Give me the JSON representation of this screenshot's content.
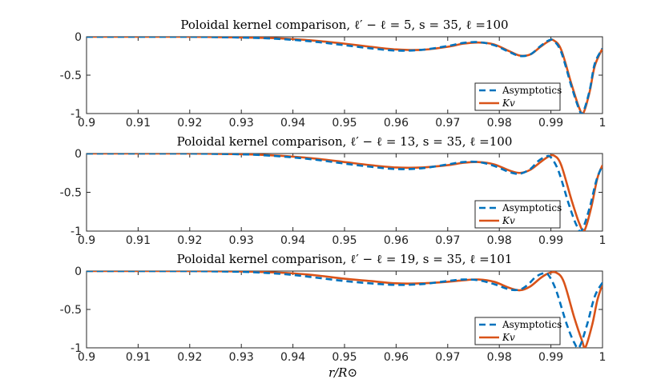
{
  "figure": {
    "xlabel": "r/R⊙"
  },
  "colors": {
    "asymptotics": "#0072BD",
    "kernel": "#D95319",
    "axis": "#262626",
    "background": "#ffffff"
  },
  "chart_data": [
    {
      "type": "line",
      "title": "Poloidal kernel comparison, ℓ′ − ℓ = 5, s = 35, ℓ =100",
      "xlim": [
        0.9,
        1.0
      ],
      "ylim": [
        -1,
        0
      ],
      "xticks": [
        "0.9",
        "0.91",
        "0.92",
        "0.93",
        "0.94",
        "0.95",
        "0.96",
        "0.97",
        "0.98",
        "0.99",
        "1"
      ],
      "yticks": [
        "0",
        "-0.5",
        "-1"
      ],
      "legend": {
        "position": "lower-right",
        "entries": [
          "Asymptotics",
          "Kv"
        ]
      },
      "series": [
        {
          "name": "Asymptotics",
          "style": "dashed",
          "x": [
            0.9,
            0.91,
            0.92,
            0.93,
            0.935,
            0.94,
            0.945,
            0.95,
            0.955,
            0.96,
            0.965,
            0.97,
            0.973,
            0.976,
            0.979,
            0.982,
            0.984,
            0.986,
            0.988,
            0.9895,
            0.9905,
            0.992,
            0.994,
            0.9955,
            0.9962,
            0.9975,
            0.9985,
            1.0
          ],
          "y": [
            0,
            0,
            0,
            -0.01,
            -0.02,
            -0.04,
            -0.07,
            -0.11,
            -0.15,
            -0.18,
            -0.17,
            -0.12,
            -0.08,
            -0.07,
            -0.11,
            -0.2,
            -0.25,
            -0.23,
            -0.12,
            -0.05,
            -0.05,
            -0.2,
            -0.65,
            -0.95,
            -0.99,
            -0.7,
            -0.35,
            -0.15
          ]
        },
        {
          "name": "Kv",
          "style": "solid",
          "x": [
            0.9,
            0.91,
            0.92,
            0.93,
            0.935,
            0.94,
            0.945,
            0.95,
            0.955,
            0.96,
            0.965,
            0.97,
            0.973,
            0.976,
            0.979,
            0.982,
            0.984,
            0.986,
            0.988,
            0.9895,
            0.9905,
            0.992,
            0.994,
            0.9955,
            0.9963,
            0.9975,
            0.9985,
            1.0
          ],
          "y": [
            0,
            0,
            0,
            -0.008,
            -0.015,
            -0.03,
            -0.055,
            -0.09,
            -0.13,
            -0.165,
            -0.17,
            -0.13,
            -0.09,
            -0.075,
            -0.1,
            -0.19,
            -0.245,
            -0.23,
            -0.13,
            -0.06,
            -0.045,
            -0.17,
            -0.62,
            -0.93,
            -0.99,
            -0.72,
            -0.38,
            -0.15
          ]
        }
      ]
    },
    {
      "type": "line",
      "title": "Poloidal kernel comparison, ℓ′ − ℓ = 13, s = 35, ℓ =100",
      "xlim": [
        0.9,
        1.0
      ],
      "ylim": [
        -1,
        0
      ],
      "xticks": [
        "0.9",
        "0.91",
        "0.92",
        "0.93",
        "0.94",
        "0.95",
        "0.96",
        "0.97",
        "0.98",
        "0.99",
        "1"
      ],
      "yticks": [
        "0",
        "-0.5",
        "-1"
      ],
      "legend": {
        "position": "lower-right",
        "entries": [
          "Asymptotics",
          "Kv"
        ]
      },
      "series": [
        {
          "name": "Asymptotics",
          "style": "dashed",
          "x": [
            0.9,
            0.91,
            0.92,
            0.93,
            0.935,
            0.94,
            0.945,
            0.95,
            0.955,
            0.96,
            0.965,
            0.97,
            0.973,
            0.976,
            0.979,
            0.982,
            0.984,
            0.986,
            0.9875,
            0.989,
            0.99,
            0.9915,
            0.9935,
            0.995,
            0.996,
            0.9975,
            0.9988,
            1.0
          ],
          "y": [
            0,
            0,
            0,
            -0.01,
            -0.025,
            -0.05,
            -0.085,
            -0.13,
            -0.17,
            -0.2,
            -0.19,
            -0.14,
            -0.11,
            -0.11,
            -0.16,
            -0.24,
            -0.26,
            -0.2,
            -0.1,
            -0.04,
            -0.05,
            -0.23,
            -0.66,
            -0.93,
            -0.99,
            -0.7,
            -0.35,
            -0.15
          ]
        },
        {
          "name": "Kv",
          "style": "solid",
          "x": [
            0.9,
            0.91,
            0.92,
            0.93,
            0.935,
            0.94,
            0.945,
            0.95,
            0.955,
            0.96,
            0.965,
            0.97,
            0.973,
            0.976,
            0.979,
            0.982,
            0.984,
            0.986,
            0.988,
            0.9895,
            0.9907,
            0.992,
            0.994,
            0.9955,
            0.9965,
            0.9978,
            0.999,
            1.0
          ],
          "y": [
            0,
            0,
            0,
            -0.008,
            -0.02,
            -0.04,
            -0.07,
            -0.11,
            -0.15,
            -0.18,
            -0.18,
            -0.15,
            -0.12,
            -0.11,
            -0.14,
            -0.22,
            -0.25,
            -0.21,
            -0.11,
            -0.04,
            -0.03,
            -0.15,
            -0.6,
            -0.9,
            -0.99,
            -0.7,
            -0.32,
            -0.15
          ]
        }
      ]
    },
    {
      "type": "line",
      "title": "Poloidal kernel comparison, ℓ′ − ℓ = 19, s = 35, ℓ =101",
      "xlim": [
        0.9,
        1.0
      ],
      "ylim": [
        -1,
        0
      ],
      "xticks": [
        "0.9",
        "0.91",
        "0.92",
        "0.93",
        "0.94",
        "0.95",
        "0.96",
        "0.97",
        "0.98",
        "0.99",
        "1"
      ],
      "yticks": [
        "0",
        "-0.5",
        "-1"
      ],
      "legend": {
        "position": "lower-right",
        "entries": [
          "Asymptotics",
          "Kv"
        ]
      },
      "series": [
        {
          "name": "Asymptotics",
          "style": "dashed",
          "x": [
            0.9,
            0.91,
            0.92,
            0.93,
            0.935,
            0.94,
            0.945,
            0.95,
            0.955,
            0.96,
            0.965,
            0.97,
            0.973,
            0.976,
            0.979,
            0.982,
            0.984,
            0.9855,
            0.987,
            0.9885,
            0.9895,
            0.991,
            0.993,
            0.9945,
            0.9955,
            0.997,
            0.9985,
            1.0
          ],
          "y": [
            0,
            0,
            0,
            -0.01,
            -0.025,
            -0.05,
            -0.09,
            -0.13,
            -0.16,
            -0.18,
            -0.17,
            -0.13,
            -0.11,
            -0.12,
            -0.17,
            -0.24,
            -0.24,
            -0.18,
            -0.08,
            -0.03,
            -0.05,
            -0.25,
            -0.68,
            -0.93,
            -0.99,
            -0.7,
            -0.33,
            -0.15
          ]
        },
        {
          "name": "Kv",
          "style": "solid",
          "x": [
            0.9,
            0.91,
            0.92,
            0.93,
            0.935,
            0.94,
            0.945,
            0.95,
            0.955,
            0.96,
            0.965,
            0.97,
            0.973,
            0.976,
            0.979,
            0.982,
            0.984,
            0.986,
            0.988,
            0.9895,
            0.991,
            0.9925,
            0.9945,
            0.996,
            0.9967,
            0.998,
            0.999,
            1.0
          ],
          "y": [
            0,
            0,
            0,
            -0.005,
            -0.015,
            -0.03,
            -0.06,
            -0.1,
            -0.13,
            -0.16,
            -0.16,
            -0.14,
            -0.12,
            -0.11,
            -0.14,
            -0.22,
            -0.25,
            -0.2,
            -0.09,
            -0.03,
            -0.02,
            -0.14,
            -0.6,
            -0.9,
            -0.99,
            -0.7,
            -0.38,
            -0.17
          ]
        }
      ]
    }
  ]
}
